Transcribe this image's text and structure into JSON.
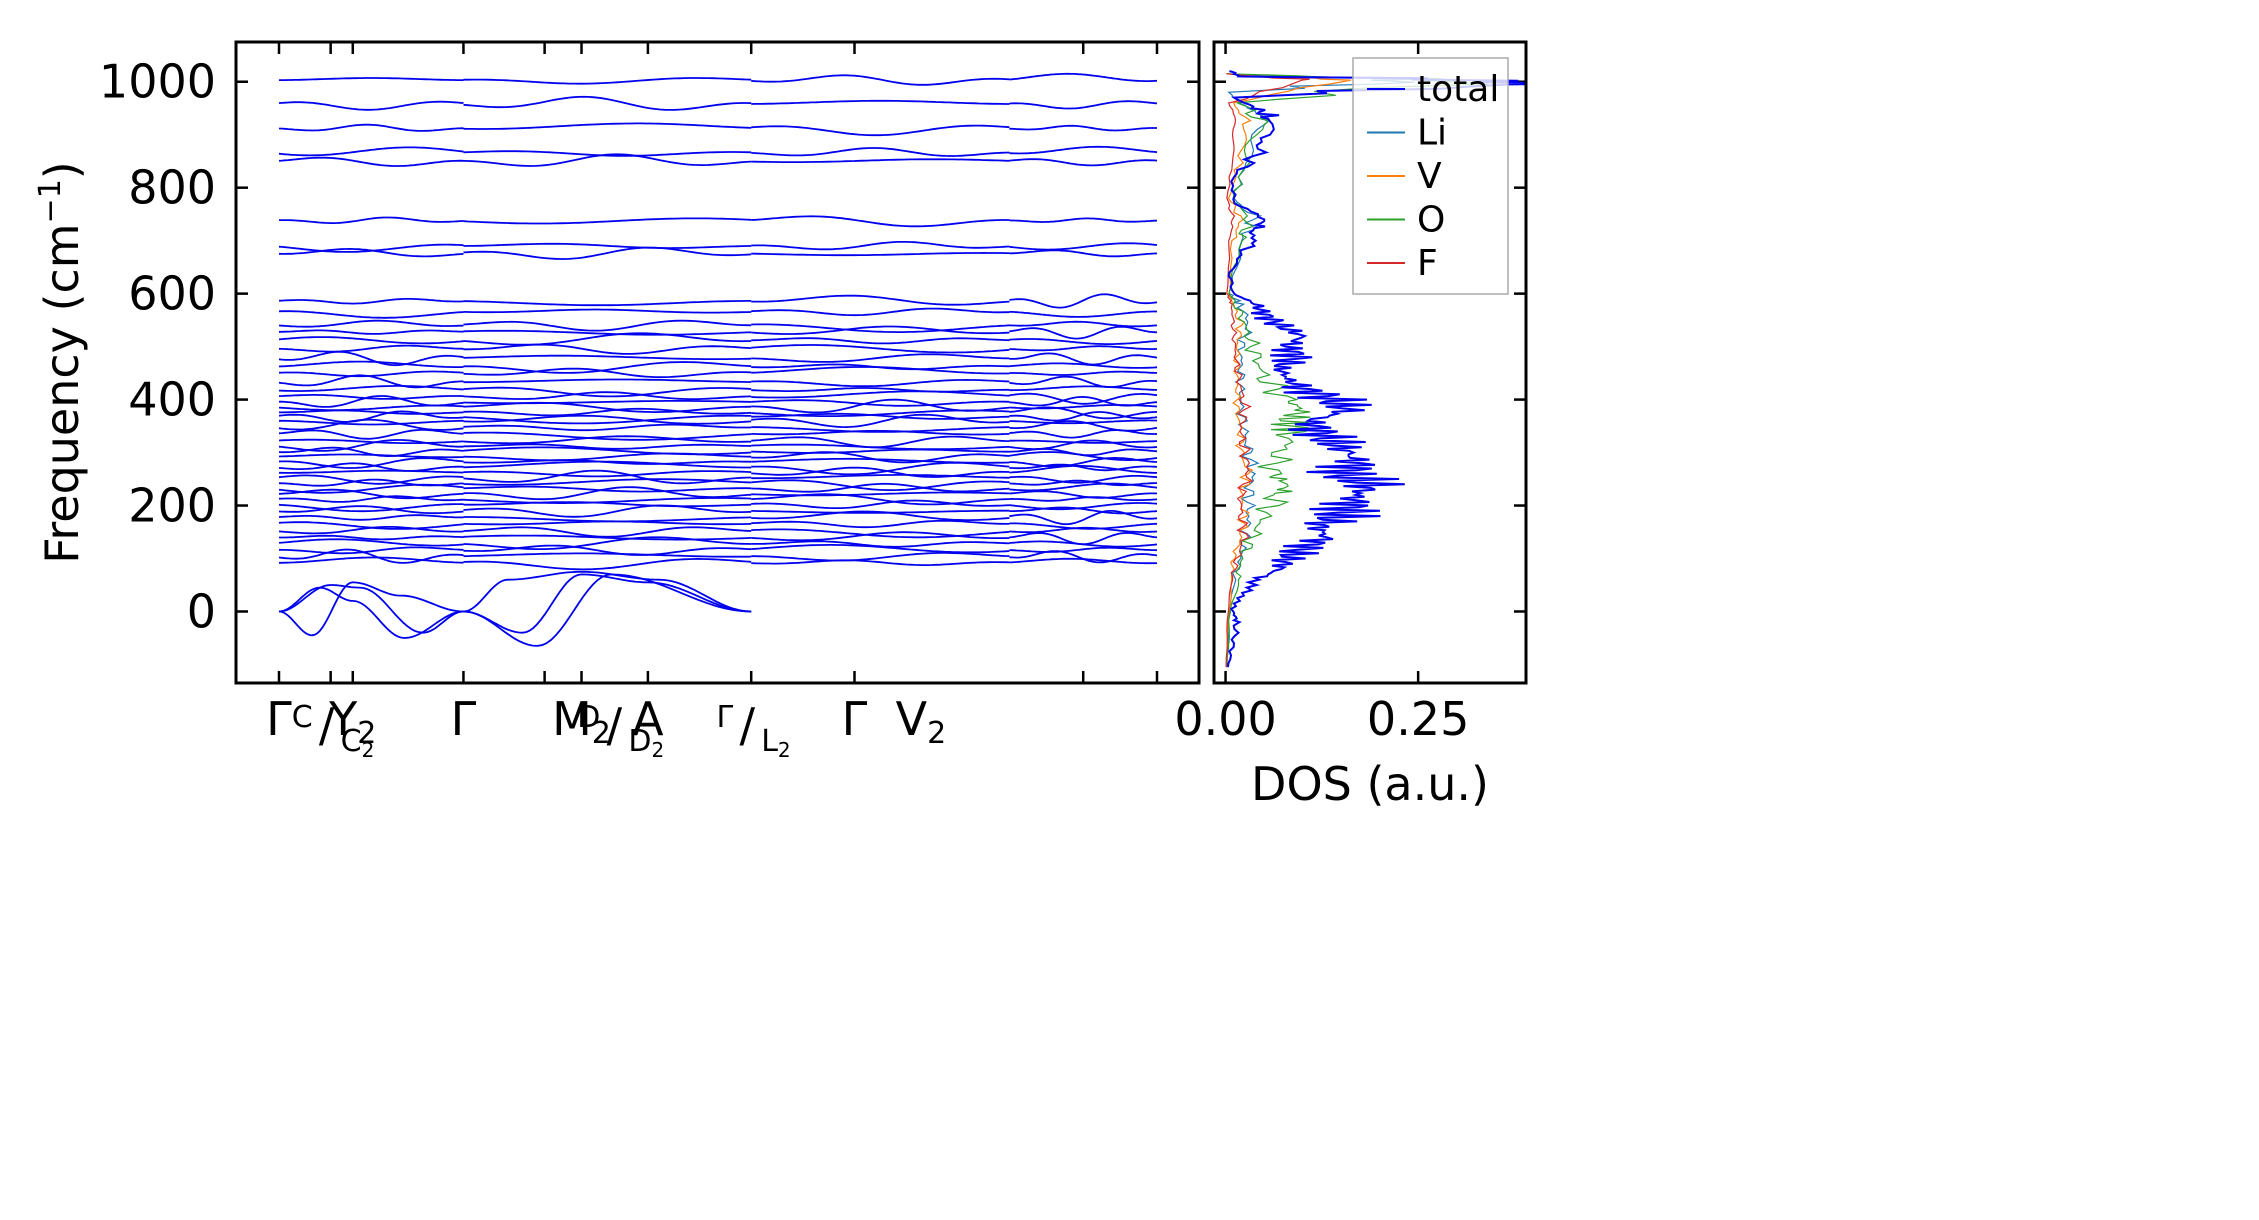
{
  "chart_data": [
    {
      "type": "line",
      "panel": "phonon-band-structure",
      "ylabel": "Frequency (cm",
      "ylabel_sup": "−1",
      "ylabel_tail": ")",
      "ylim": [
        -135,
        1075
      ],
      "yticks": [
        "1000",
        "800",
        "600",
        "400",
        "200",
        "0"
      ],
      "ytick_values": [
        1000,
        800,
        600,
        400,
        200,
        0
      ],
      "path_positions": [
        0,
        0.14,
        0.2,
        0.5,
        0.72,
        0.82,
        1.0,
        1.28,
        1.56,
        2.18,
        2.38
      ],
      "segments": [
        [
          0,
          0.5
        ],
        [
          0.5,
          1.28
        ],
        [
          1.28,
          1.98
        ],
        [
          1.98,
          2.38
        ]
      ],
      "xticks": [
        {
          "pos": 0,
          "label": "Γ"
        },
        {
          "pos": 0.14,
          "label": "C",
          "sub": "C",
          "kind": "frac",
          "den_sub": "2"
        },
        {
          "pos": 0.2,
          "label": "Y",
          "sub": "2"
        },
        {
          "pos": 0.5,
          "label": "Γ"
        },
        {
          "pos": 0.82,
          "label": "M",
          "sub": "2"
        },
        {
          "pos": 0.92,
          "label": "D",
          "kind": "frac",
          "den_sub": "2"
        },
        {
          "pos": 1.0,
          "label": "A"
        },
        {
          "pos": 1.28,
          "label": "Γ",
          "kind": "frac",
          "den": "L",
          "den_sub": "2"
        },
        {
          "pos": 1.56,
          "label": "Γ"
        },
        {
          "pos": 1.74,
          "label": "V",
          "sub": "2"
        }
      ],
      "line_color": "#0000ee",
      "flat_bands_cm1": [
        1003,
        958,
        912,
        866,
        850,
        738,
        690,
        676,
        586,
        566,
        541,
        528,
        512,
        496,
        478,
        462,
        450,
        433,
        418,
        406,
        395,
        386,
        376,
        368,
        360,
        348,
        336,
        322,
        312,
        302,
        292,
        282,
        272,
        262,
        252,
        242,
        232,
        222,
        212,
        202,
        190,
        178,
        166,
        152,
        140,
        128,
        116,
        104,
        92
      ],
      "acoustic_modes_cm1": [
        {
          "x": [
            0,
            0.09,
            0.2,
            0.33,
            0.5,
            0.66,
            0.82,
            1.0,
            1.28
          ],
          "y": [
            0,
            -45,
            55,
            30,
            0,
            -40,
            70,
            55,
            0
          ]
        },
        {
          "x": [
            0,
            0.11,
            0.2,
            0.34,
            0.5,
            0.62,
            0.82,
            1.03,
            1.28
          ],
          "y": [
            0,
            45,
            20,
            -50,
            0,
            60,
            75,
            60,
            0
          ]
        },
        {
          "x": [
            0,
            0.14,
            0.22,
            0.39,
            0.5,
            0.7,
            0.9,
            1.28
          ],
          "y": [
            0,
            50,
            45,
            -40,
            0,
            -65,
            70,
            0
          ]
        }
      ]
    },
    {
      "type": "line",
      "panel": "density-of-states",
      "xlabel": "DOS (a.u.)",
      "xticks": [
        "0.00",
        "0.25"
      ],
      "xtick_values": [
        0.0,
        0.25
      ],
      "xlim": [
        -0.015,
        0.39
      ],
      "ylim": [
        -135,
        1075
      ],
      "legend": "top-right",
      "series": [
        {
          "name": "total",
          "color": "#0000ee"
        },
        {
          "name": "Li",
          "color": "#1f77b4"
        },
        {
          "name": "V",
          "color": "#ff7f0e"
        },
        {
          "name": "O",
          "color": "#2ca02c"
        },
        {
          "name": "F",
          "color": "#d62728"
        }
      ],
      "dos_total": [
        [
          -105,
          0.003
        ],
        [
          -60,
          0.01
        ],
        [
          -20,
          0.015
        ],
        [
          0,
          0.01
        ],
        [
          30,
          0.018
        ],
        [
          60,
          0.04
        ],
        [
          80,
          0.07
        ],
        [
          100,
          0.08
        ],
        [
          120,
          0.1
        ],
        [
          140,
          0.13
        ],
        [
          160,
          0.12
        ],
        [
          180,
          0.15
        ],
        [
          200,
          0.16
        ],
        [
          220,
          0.17
        ],
        [
          240,
          0.19
        ],
        [
          260,
          0.15
        ],
        [
          280,
          0.17
        ],
        [
          300,
          0.16
        ],
        [
          320,
          0.14
        ],
        [
          340,
          0.12
        ],
        [
          360,
          0.11
        ],
        [
          380,
          0.16
        ],
        [
          400,
          0.14
        ],
        [
          420,
          0.1
        ],
        [
          440,
          0.08
        ],
        [
          460,
          0.07
        ],
        [
          480,
          0.09
        ],
        [
          500,
          0.08
        ],
        [
          520,
          0.1
        ],
        [
          540,
          0.07
        ],
        [
          560,
          0.05
        ],
        [
          580,
          0.04
        ],
        [
          600,
          0.01
        ],
        [
          640,
          0.005
        ],
        [
          690,
          0.03
        ],
        [
          720,
          0.04
        ],
        [
          740,
          0.05
        ],
        [
          770,
          0.01
        ],
        [
          820,
          0.01
        ],
        [
          860,
          0.04
        ],
        [
          900,
          0.05
        ],
        [
          930,
          0.06
        ],
        [
          950,
          0.04
        ],
        [
          970,
          0.01
        ],
        [
          995,
          0.35
        ],
        [
          1003,
          0.38
        ],
        [
          1010,
          0.02
        ],
        [
          1020,
          0.005
        ]
      ],
      "dos_Li": [
        [
          -105,
          0.002
        ],
        [
          0,
          0.005
        ],
        [
          60,
          0.01
        ],
        [
          100,
          0.02
        ],
        [
          140,
          0.025
        ],
        [
          180,
          0.03
        ],
        [
          220,
          0.03
        ],
        [
          260,
          0.035
        ],
        [
          300,
          0.03
        ],
        [
          340,
          0.025
        ],
        [
          380,
          0.02
        ],
        [
          420,
          0.02
        ],
        [
          460,
          0.02
        ],
        [
          500,
          0.02
        ],
        [
          540,
          0.03
        ],
        [
          580,
          0.02
        ],
        [
          600,
          0.005
        ],
        [
          700,
          0.02
        ],
        [
          740,
          0.04
        ],
        [
          780,
          0.01
        ],
        [
          860,
          0.03
        ],
        [
          920,
          0.05
        ],
        [
          950,
          0.03
        ],
        [
          980,
          0.005
        ],
        [
          1003,
          0.25
        ],
        [
          1015,
          0.002
        ]
      ],
      "dos_V": [
        [
          -105,
          0.001
        ],
        [
          0,
          0.004
        ],
        [
          60,
          0.008
        ],
        [
          100,
          0.01
        ],
        [
          140,
          0.02
        ],
        [
          180,
          0.025
        ],
        [
          220,
          0.02
        ],
        [
          260,
          0.03
        ],
        [
          300,
          0.02
        ],
        [
          340,
          0.02
        ],
        [
          380,
          0.015
        ],
        [
          420,
          0.015
        ],
        [
          460,
          0.015
        ],
        [
          500,
          0.015
        ],
        [
          540,
          0.02
        ],
        [
          580,
          0.01
        ],
        [
          600,
          0.004
        ],
        [
          700,
          0.01
        ],
        [
          740,
          0.02
        ],
        [
          780,
          0.005
        ],
        [
          860,
          0.02
        ],
        [
          920,
          0.03
        ],
        [
          960,
          0.01
        ],
        [
          1003,
          0.15
        ],
        [
          1015,
          0.001
        ]
      ],
      "dos_O": [
        [
          -105,
          0.002
        ],
        [
          0,
          0.006
        ],
        [
          60,
          0.015
        ],
        [
          100,
          0.02
        ],
        [
          140,
          0.035
        ],
        [
          180,
          0.05
        ],
        [
          220,
          0.07
        ],
        [
          240,
          0.08
        ],
        [
          260,
          0.06
        ],
        [
          300,
          0.07
        ],
        [
          340,
          0.09
        ],
        [
          360,
          0.08
        ],
        [
          380,
          0.1
        ],
        [
          400,
          0.08
        ],
        [
          440,
          0.05
        ],
        [
          480,
          0.04
        ],
        [
          520,
          0.03
        ],
        [
          560,
          0.02
        ],
        [
          600,
          0.005
        ],
        [
          700,
          0.02
        ],
        [
          740,
          0.03
        ],
        [
          780,
          0.01
        ],
        [
          860,
          0.03
        ],
        [
          920,
          0.05
        ],
        [
          960,
          0.02
        ],
        [
          1003,
          0.3
        ],
        [
          1015,
          0.002
        ]
      ],
      "dos_F": [
        [
          -105,
          0.001
        ],
        [
          0,
          0.003
        ],
        [
          60,
          0.008
        ],
        [
          100,
          0.015
        ],
        [
          140,
          0.025
        ],
        [
          180,
          0.02
        ],
        [
          220,
          0.02
        ],
        [
          260,
          0.03
        ],
        [
          300,
          0.025
        ],
        [
          340,
          0.02
        ],
        [
          380,
          0.025
        ],
        [
          420,
          0.02
        ],
        [
          460,
          0.015
        ],
        [
          500,
          0.012
        ],
        [
          540,
          0.01
        ],
        [
          580,
          0.008
        ],
        [
          600,
          0.002
        ],
        [
          700,
          0.005
        ],
        [
          740,
          0.01
        ],
        [
          780,
          0.002
        ],
        [
          860,
          0.01
        ],
        [
          920,
          0.015
        ],
        [
          960,
          0.005
        ],
        [
          1003,
          0.1
        ],
        [
          1015,
          0.001
        ]
      ]
    }
  ]
}
